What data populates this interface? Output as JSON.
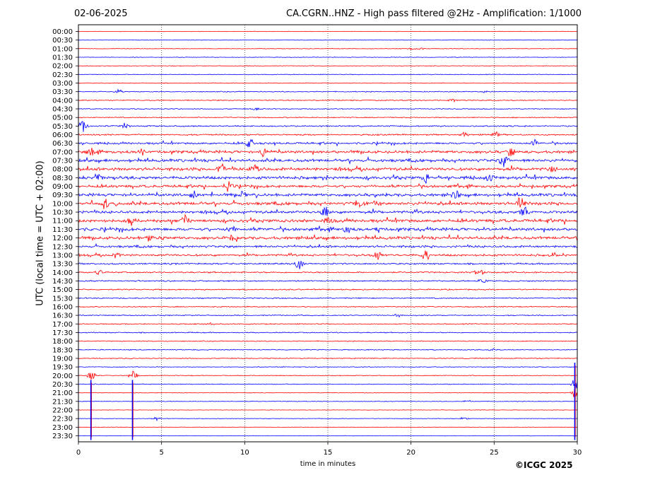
{
  "header": {
    "date": "02-06-2025",
    "title": "CA.CGRN..HNZ - High pass filtered @2Hz - Amplification: 1/1000"
  },
  "footer": {
    "copyright": "©ICGC 2025"
  },
  "chart_data": {
    "type": "line",
    "title": "CA.CGRN..HNZ - High pass filtered @2Hz - Amplification: 1/1000",
    "xlabel": "time in minutes",
    "ylabel": "UTC (local time = UTC + 02:00)",
    "xlim": [
      0,
      30
    ],
    "x_ticks": [
      0,
      5,
      10,
      15,
      20,
      25,
      30
    ],
    "vertical_gridlines": [
      5,
      10,
      15,
      20,
      25
    ],
    "grid_style": "dotted vertical",
    "trace_colors": [
      "#ff0000",
      "#0000ff"
    ],
    "row_labels": [
      "00:00",
      "00:30",
      "01:00",
      "01:30",
      "02:00",
      "02:30",
      "03:00",
      "03:30",
      "04:00",
      "04:30",
      "05:00",
      "05:30",
      "06:00",
      "06:30",
      "07:00",
      "07:30",
      "08:00",
      "08:30",
      "09:00",
      "09:30",
      "10:00",
      "10:30",
      "11:00",
      "11:30",
      "12:00",
      "12:30",
      "13:00",
      "13:30",
      "14:00",
      "14:30",
      "15:00",
      "15:30",
      "16:00",
      "16:30",
      "17:00",
      "17:30",
      "18:00",
      "18:30",
      "19:00",
      "19:30",
      "20:00",
      "20:30",
      "21:00",
      "21:30",
      "22:00",
      "22:30",
      "23:00",
      "23:30"
    ],
    "noise_level": [
      0.3,
      0.3,
      0.4,
      0.4,
      0.4,
      0.5,
      0.5,
      0.6,
      0.7,
      0.6,
      0.7,
      0.9,
      1.0,
      1.3,
      1.8,
      1.9,
      2.0,
      2.0,
      1.7,
      1.9,
      2.0,
      1.8,
      2.0,
      2.0,
      1.9,
      1.5,
      1.4,
      1.1,
      1.0,
      0.9,
      0.8,
      0.8,
      0.7,
      0.7,
      0.7,
      0.7,
      0.6,
      0.6,
      0.6,
      0.5,
      0.5,
      0.5,
      0.4,
      0.4,
      0.3,
      0.3,
      0.3,
      0.3
    ],
    "events": [
      {
        "row": 2,
        "minute": 20.1,
        "amp": 3
      },
      {
        "row": 2,
        "minute": 20.6,
        "amp": 2
      },
      {
        "row": 7,
        "minute": 2.4,
        "amp": 4
      },
      {
        "row": 7,
        "minute": 24.4,
        "amp": 3
      },
      {
        "row": 8,
        "minute": 22.5,
        "amp": 3
      },
      {
        "row": 9,
        "minute": 10.7,
        "amp": 2
      },
      {
        "row": 11,
        "minute": 0.3,
        "amp": 12
      },
      {
        "row": 11,
        "minute": 2.8,
        "amp": 5
      },
      {
        "row": 12,
        "minute": 23.2,
        "amp": 5
      },
      {
        "row": 12,
        "minute": 25.1,
        "amp": 5
      },
      {
        "row": 13,
        "minute": 10.3,
        "amp": 8
      },
      {
        "row": 13,
        "minute": 27.4,
        "amp": 9
      },
      {
        "row": 14,
        "minute": 0.8,
        "amp": 6
      },
      {
        "row": 14,
        "minute": 3.8,
        "amp": 7
      },
      {
        "row": 14,
        "minute": 11.1,
        "amp": 8
      },
      {
        "row": 14,
        "minute": 26.0,
        "amp": 8
      },
      {
        "row": 15,
        "minute": 25.6,
        "amp": 10
      },
      {
        "row": 16,
        "minute": 8.6,
        "amp": 9
      },
      {
        "row": 16,
        "minute": 10.6,
        "amp": 7
      },
      {
        "row": 16,
        "minute": 28.5,
        "amp": 6
      },
      {
        "row": 17,
        "minute": 1.2,
        "amp": 8
      },
      {
        "row": 17,
        "minute": 20.9,
        "amp": 9
      },
      {
        "row": 17,
        "minute": 24.7,
        "amp": 7
      },
      {
        "row": 18,
        "minute": 9.0,
        "amp": 11
      },
      {
        "row": 19,
        "minute": 6.9,
        "amp": 7
      },
      {
        "row": 19,
        "minute": 9.8,
        "amp": 7
      },
      {
        "row": 19,
        "minute": 22.7,
        "amp": 7
      },
      {
        "row": 20,
        "minute": 1.6,
        "amp": 9
      },
      {
        "row": 20,
        "minute": 16.9,
        "amp": 6
      },
      {
        "row": 20,
        "minute": 18.0,
        "amp": 7
      },
      {
        "row": 20,
        "minute": 26.7,
        "amp": 10
      },
      {
        "row": 21,
        "minute": 14.8,
        "amp": 7
      },
      {
        "row": 21,
        "minute": 26.8,
        "amp": 9
      },
      {
        "row": 22,
        "minute": 3.2,
        "amp": 8
      },
      {
        "row": 22,
        "minute": 6.4,
        "amp": 7
      },
      {
        "row": 22,
        "minute": 15.0,
        "amp": 6
      },
      {
        "row": 23,
        "minute": 9.2,
        "amp": 6
      },
      {
        "row": 23,
        "minute": 16.1,
        "amp": 6
      },
      {
        "row": 23,
        "minute": 18.0,
        "amp": 7
      },
      {
        "row": 24,
        "minute": 4.2,
        "amp": 6
      },
      {
        "row": 24,
        "minute": 9.2,
        "amp": 5
      },
      {
        "row": 26,
        "minute": 2.3,
        "amp": 5
      },
      {
        "row": 26,
        "minute": 18.0,
        "amp": 7
      },
      {
        "row": 26,
        "minute": 20.9,
        "amp": 9
      },
      {
        "row": 26,
        "minute": 28.6,
        "amp": 5
      },
      {
        "row": 27,
        "minute": 13.3,
        "amp": 9
      },
      {
        "row": 28,
        "minute": 1.2,
        "amp": 4
      },
      {
        "row": 28,
        "minute": 24.1,
        "amp": 8
      },
      {
        "row": 29,
        "minute": 24.3,
        "amp": 5
      },
      {
        "row": 33,
        "minute": 19.2,
        "amp": 3
      },
      {
        "row": 34,
        "minute": 7.9,
        "amp": 2
      },
      {
        "row": 37,
        "minute": 24.9,
        "amp": 2
      },
      {
        "row": 40,
        "minute": 0.8,
        "amp": 9
      },
      {
        "row": 40,
        "minute": 3.3,
        "amp": 9
      },
      {
        "row": 41,
        "minute": 29.9,
        "amp": 10
      },
      {
        "row": 42,
        "minute": 29.9,
        "amp": 12
      },
      {
        "row": 43,
        "minute": 23.4,
        "amp": 2
      },
      {
        "row": 45,
        "minute": 4.7,
        "amp": 3
      },
      {
        "row": 45,
        "minute": 23.2,
        "amp": 3
      }
    ],
    "long_spikes": [
      {
        "row": 41,
        "minute": 0.75,
        "span_rows": 6
      },
      {
        "row": 41,
        "minute": 3.25,
        "span_rows": 6
      },
      {
        "row": 39,
        "minute": 29.85,
        "span_rows": 8
      }
    ]
  }
}
